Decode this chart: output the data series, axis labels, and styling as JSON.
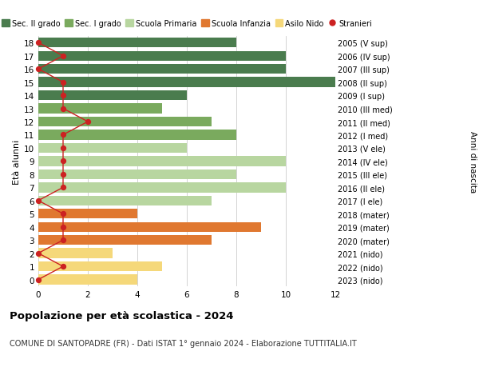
{
  "ages": [
    18,
    17,
    16,
    15,
    14,
    13,
    12,
    11,
    10,
    9,
    8,
    7,
    6,
    5,
    4,
    3,
    2,
    1,
    0
  ],
  "years": [
    "2005 (V sup)",
    "2006 (IV sup)",
    "2007 (III sup)",
    "2008 (II sup)",
    "2009 (I sup)",
    "2010 (III med)",
    "2011 (II med)",
    "2012 (I med)",
    "2013 (V ele)",
    "2014 (IV ele)",
    "2015 (III ele)",
    "2016 (II ele)",
    "2017 (I ele)",
    "2018 (mater)",
    "2019 (mater)",
    "2020 (mater)",
    "2021 (nido)",
    "2022 (nido)",
    "2023 (nido)"
  ],
  "bar_values": [
    8,
    10,
    10,
    13,
    6,
    5,
    7,
    8,
    6,
    10,
    8,
    10,
    7,
    4,
    9,
    7,
    3,
    5,
    4
  ],
  "bar_colors": [
    "#4a7c4e",
    "#4a7c4e",
    "#4a7c4e",
    "#4a7c4e",
    "#4a7c4e",
    "#7aaa5e",
    "#7aaa5e",
    "#7aaa5e",
    "#b8d6a0",
    "#b8d6a0",
    "#b8d6a0",
    "#b8d6a0",
    "#b8d6a0",
    "#e07830",
    "#e07830",
    "#e07830",
    "#f5d87a",
    "#f5d87a",
    "#f5d87a"
  ],
  "stranieri_values": [
    0,
    1,
    0,
    1,
    1,
    1,
    2,
    1,
    1,
    1,
    1,
    1,
    0,
    1,
    1,
    1,
    0,
    1,
    0
  ],
  "stranieri_color": "#cc2222",
  "legend_labels": [
    "Sec. II grado",
    "Sec. I grado",
    "Scuola Primaria",
    "Scuola Infanzia",
    "Asilo Nido",
    "Stranieri"
  ],
  "legend_colors": [
    "#4a7c4e",
    "#7aaa5e",
    "#b8d6a0",
    "#e07830",
    "#f5d87a",
    "#cc2222"
  ],
  "title": "Popolazione per età scolastica - 2024",
  "subtitle": "COMUNE DI SANTOPADRE (FR) - Dati ISTAT 1° gennaio 2024 - Elaborazione TUTTITALIA.IT",
  "ylabel_left": "Età alunni",
  "ylabel_right": "Anni di nascita",
  "xlim": [
    0,
    12
  ],
  "background_color": "#ffffff",
  "grid_color": "#cccccc"
}
